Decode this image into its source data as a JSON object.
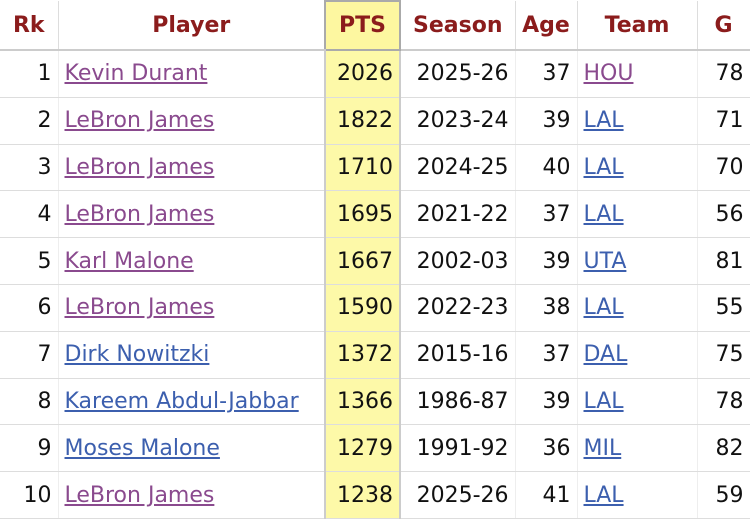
{
  "table": {
    "header": [
      "Rk",
      "Player",
      "PTS",
      "Season",
      "Age",
      "Team",
      "G"
    ],
    "rows": [
      [
        1,
        "Kevin Durant",
        2026,
        "2025-26",
        37,
        "HOU",
        78
      ],
      [
        2,
        "LeBron James",
        1822,
        "2023-24",
        39,
        "LAL",
        71
      ],
      [
        3,
        "LeBron James",
        1710,
        "2024-25",
        40,
        "LAL",
        70
      ],
      [
        4,
        "LeBron James",
        1695,
        "2021-22",
        37,
        "LAL",
        56
      ],
      [
        5,
        "Karl Malone",
        1667,
        "2002-03",
        39,
        "UTA",
        81
      ],
      [
        6,
        "LeBron James",
        1590,
        "2022-23",
        38,
        "LAL",
        55
      ],
      [
        7,
        "Dirk Nowitzki",
        1372,
        "2015-16",
        37,
        "DAL",
        75
      ],
      [
        8,
        "Kareem Abdul-Jabbar",
        1366,
        "1986-87",
        39,
        "LAL",
        78
      ],
      [
        9,
        "Moses Malone",
        1279,
        "1991-92",
        36,
        "MIL",
        82
      ],
      [
        10,
        "LeBron James",
        1238,
        "2025-26",
        41,
        "LAL",
        59
      ]
    ]
  }
}
